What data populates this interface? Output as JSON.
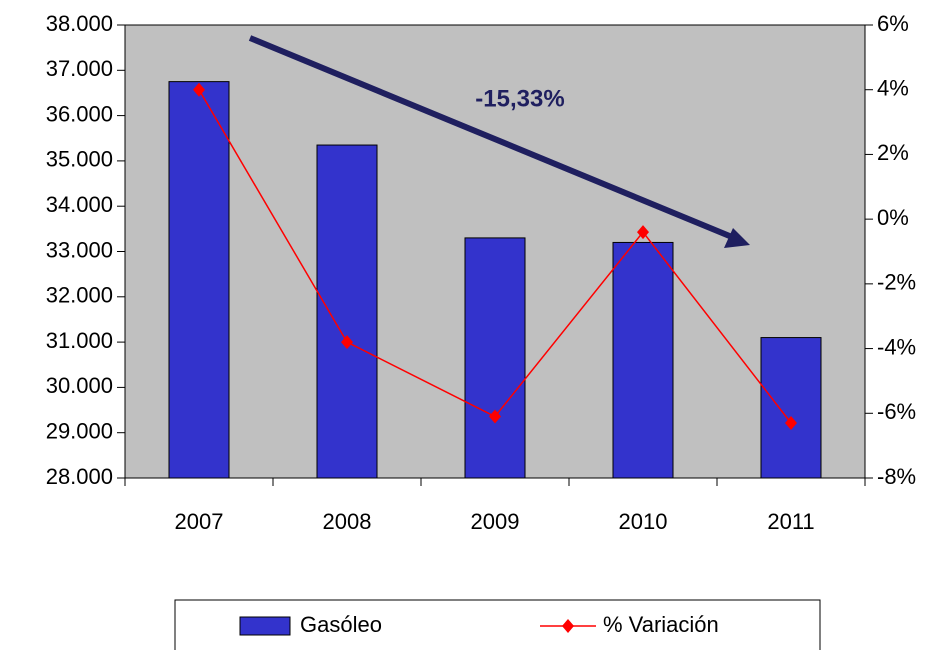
{
  "chart_data": {
    "type": "bar",
    "annotation": "-15,33%",
    "categories": [
      "2007",
      "2008",
      "2009",
      "2010",
      "2011"
    ],
    "series": [
      {
        "name": "Gasóleo",
        "type": "bar",
        "color": "#3333cc",
        "values": [
          36750,
          35350,
          33300,
          33200,
          31100
        ]
      },
      {
        "name": "% Variación",
        "type": "line",
        "axis": "y2",
        "color": "#ff0000",
        "values": [
          4.0,
          -3.8,
          -6.1,
          -0.4,
          -6.3
        ]
      }
    ],
    "ylim": [
      28000,
      38000
    ],
    "yticks": [
      {
        "value": 28000,
        "label": "28.000"
      },
      {
        "value": 29000,
        "label": "29.000"
      },
      {
        "value": 30000,
        "label": "30.000"
      },
      {
        "value": 31000,
        "label": "31.000"
      },
      {
        "value": 32000,
        "label": "32.000"
      },
      {
        "value": 33000,
        "label": "33.000"
      },
      {
        "value": 34000,
        "label": "34.000"
      },
      {
        "value": 35000,
        "label": "35.000"
      },
      {
        "value": 36000,
        "label": "36.000"
      },
      {
        "value": 37000,
        "label": "37.000"
      },
      {
        "value": 38000,
        "label": "38.000"
      }
    ],
    "y2lim": [
      -8,
      6
    ],
    "y2ticks": [
      {
        "value": -8,
        "label": "-8%"
      },
      {
        "value": -6,
        "label": "-6%"
      },
      {
        "value": -4,
        "label": "-4%"
      },
      {
        "value": -2,
        "label": "-2%"
      },
      {
        "value": 0,
        "label": "0%"
      },
      {
        "value": 2,
        "label": "2%"
      },
      {
        "value": 4,
        "label": "4%"
      },
      {
        "value": 6,
        "label": "6%"
      }
    ],
    "plot_background": "#c0c0c0",
    "grid": false
  }
}
